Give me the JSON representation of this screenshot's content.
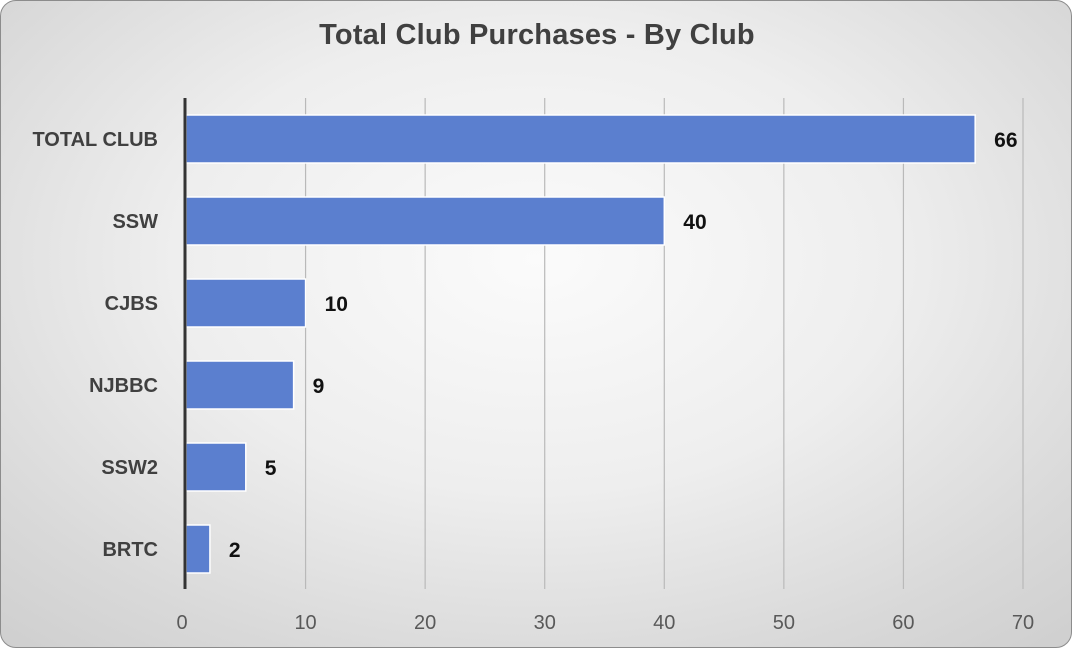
{
  "chart_data": {
    "type": "bar",
    "orientation": "horizontal",
    "title": "Total Club Purchases - By Club",
    "categories": [
      "TOTAL CLUB",
      "SSW",
      "CJBS",
      "NJBBC",
      "SSW2",
      "BRTC"
    ],
    "values": [
      66,
      40,
      10,
      9,
      5,
      2
    ],
    "data_labels": [
      "66",
      "40",
      "10",
      "9",
      "5",
      "2"
    ],
    "xlim": [
      0,
      70
    ],
    "x_ticks": [
      0,
      10,
      20,
      30,
      40,
      50,
      60,
      70
    ],
    "x_tick_labels": [
      "0",
      "10",
      "20",
      "30",
      "40",
      "50",
      "60",
      "70"
    ],
    "xlabel": "",
    "ylabel": "",
    "grid": "vertical",
    "legend": "none",
    "bar_color": "#5b7fcf"
  }
}
